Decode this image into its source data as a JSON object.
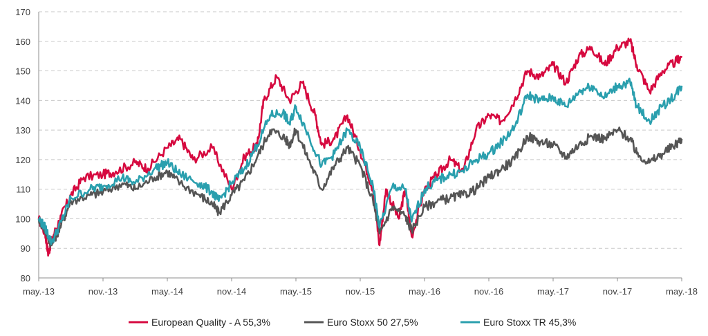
{
  "chart_data": {
    "type": "line",
    "title": "",
    "xlabel": "",
    "ylabel": "",
    "ylim": [
      80,
      170
    ],
    "y_ticks": [
      80,
      90,
      100,
      110,
      120,
      130,
      140,
      150,
      160,
      170
    ],
    "x_tick_labels": [
      "may.-13",
      "nov.-13",
      "may.-14",
      "nov.-14",
      "may.-15",
      "nov.-15",
      "may.-16",
      "nov.-16",
      "may.-17",
      "nov.-17",
      "may.-18"
    ],
    "grid": "horizontal dashed",
    "legend_position": "bottom",
    "series": [
      {
        "name": "European Quality - A 55,3%",
        "color": "#d6093f",
        "points": [
          [
            0,
            100
          ],
          [
            0.1,
            95
          ],
          [
            0.15,
            88
          ],
          [
            0.2,
            93
          ],
          [
            0.35,
            101
          ],
          [
            0.5,
            108
          ],
          [
            0.7,
            114
          ],
          [
            1,
            115
          ],
          [
            1.2,
            116
          ],
          [
            1.5,
            119
          ],
          [
            1.7,
            117
          ],
          [
            2,
            124
          ],
          [
            2.2,
            127
          ],
          [
            2.4,
            120
          ],
          [
            2.7,
            124
          ],
          [
            3,
            110
          ],
          [
            3.2,
            121
          ],
          [
            3.4,
            125
          ],
          [
            3.5,
            140
          ],
          [
            3.7,
            148
          ],
          [
            3.9,
            140
          ],
          [
            4.1,
            146
          ],
          [
            4.3,
            135
          ],
          [
            4.4,
            125
          ],
          [
            4.6,
            127
          ],
          [
            4.8,
            135
          ],
          [
            5,
            123
          ],
          [
            5.2,
            110
          ],
          [
            5.3,
            91
          ],
          [
            5.4,
            110
          ],
          [
            5.6,
            100
          ],
          [
            5.7,
            110
          ],
          [
            5.8,
            94
          ],
          [
            6,
            110
          ],
          [
            6.2,
            115
          ],
          [
            6.4,
            120
          ],
          [
            6.6,
            116
          ],
          [
            6.8,
            130
          ],
          [
            7,
            135
          ],
          [
            7.2,
            133
          ],
          [
            7.4,
            140
          ],
          [
            7.6,
            150
          ],
          [
            7.8,
            148
          ],
          [
            8,
            152
          ],
          [
            8.2,
            146
          ],
          [
            8.4,
            155
          ],
          [
            8.6,
            158
          ],
          [
            8.8,
            152
          ],
          [
            9,
            158
          ],
          [
            9.2,
            160
          ],
          [
            9.3,
            152
          ],
          [
            9.5,
            143
          ],
          [
            9.7,
            150
          ],
          [
            9.9,
            153
          ],
          [
            10,
            155
          ]
        ]
      },
      {
        "name": "Euro Stoxx 50 27,5%",
        "color": "#555555",
        "points": [
          [
            0,
            100
          ],
          [
            0.1,
            96
          ],
          [
            0.2,
            91
          ],
          [
            0.35,
            98
          ],
          [
            0.5,
            106
          ],
          [
            0.8,
            108
          ],
          [
            1,
            109
          ],
          [
            1.3,
            112
          ],
          [
            1.5,
            110
          ],
          [
            1.8,
            114
          ],
          [
            2,
            116
          ],
          [
            2.2,
            112
          ],
          [
            2.5,
            108
          ],
          [
            2.7,
            105
          ],
          [
            2.8,
            102
          ],
          [
            3,
            108
          ],
          [
            3.2,
            113
          ],
          [
            3.4,
            121
          ],
          [
            3.6,
            130
          ],
          [
            3.8,
            128
          ],
          [
            3.9,
            125
          ],
          [
            4,
            130
          ],
          [
            4.2,
            120
          ],
          [
            4.4,
            110
          ],
          [
            4.6,
            118
          ],
          [
            4.8,
            124
          ],
          [
            5,
            118
          ],
          [
            5.2,
            106
          ],
          [
            5.3,
            95
          ],
          [
            5.5,
            104
          ],
          [
            5.7,
            101
          ],
          [
            5.8,
            96
          ],
          [
            6,
            104
          ],
          [
            6.2,
            106
          ],
          [
            6.4,
            107
          ],
          [
            6.6,
            108
          ],
          [
            6.8,
            110
          ],
          [
            7,
            114
          ],
          [
            7.2,
            117
          ],
          [
            7.4,
            120
          ],
          [
            7.6,
            128
          ],
          [
            7.8,
            126
          ],
          [
            8,
            125
          ],
          [
            8.2,
            121
          ],
          [
            8.4,
            125
          ],
          [
            8.6,
            128
          ],
          [
            8.8,
            127
          ],
          [
            9,
            130
          ],
          [
            9.2,
            127
          ],
          [
            9.3,
            122
          ],
          [
            9.5,
            119
          ],
          [
            9.7,
            122
          ],
          [
            9.9,
            125
          ],
          [
            10,
            127
          ]
        ]
      },
      {
        "name": "Euro Stoxx TR 45,3%",
        "color": "#2a9fae",
        "points": [
          [
            0,
            100
          ],
          [
            0.1,
            97
          ],
          [
            0.2,
            92
          ],
          [
            0.35,
            99
          ],
          [
            0.5,
            107
          ],
          [
            0.8,
            110
          ],
          [
            1,
            111
          ],
          [
            1.3,
            114
          ],
          [
            1.5,
            112
          ],
          [
            1.8,
            117
          ],
          [
            2,
            119
          ],
          [
            2.2,
            115
          ],
          [
            2.5,
            112
          ],
          [
            2.7,
            109
          ],
          [
            2.8,
            106
          ],
          [
            3,
            112
          ],
          [
            3.2,
            117
          ],
          [
            3.4,
            125
          ],
          [
            3.6,
            135
          ],
          [
            3.8,
            136
          ],
          [
            3.9,
            132
          ],
          [
            4,
            138
          ],
          [
            4.2,
            128
          ],
          [
            4.4,
            118
          ],
          [
            4.6,
            122
          ],
          [
            4.8,
            130
          ],
          [
            5,
            124
          ],
          [
            5.2,
            111
          ],
          [
            5.3,
            97
          ],
          [
            5.5,
            111
          ],
          [
            5.7,
            110
          ],
          [
            5.8,
            99
          ],
          [
            6,
            110
          ],
          [
            6.2,
            113
          ],
          [
            6.4,
            115
          ],
          [
            6.6,
            116
          ],
          [
            6.8,
            120
          ],
          [
            7,
            122
          ],
          [
            7.2,
            126
          ],
          [
            7.4,
            131
          ],
          [
            7.6,
            142
          ],
          [
            7.8,
            140
          ],
          [
            8,
            141
          ],
          [
            8.2,
            138
          ],
          [
            8.4,
            143
          ],
          [
            8.6,
            145
          ],
          [
            8.8,
            141
          ],
          [
            9,
            145
          ],
          [
            9.2,
            146
          ],
          [
            9.3,
            138
          ],
          [
            9.5,
            133
          ],
          [
            9.7,
            138
          ],
          [
            9.9,
            142
          ],
          [
            10,
            145
          ]
        ]
      }
    ]
  }
}
